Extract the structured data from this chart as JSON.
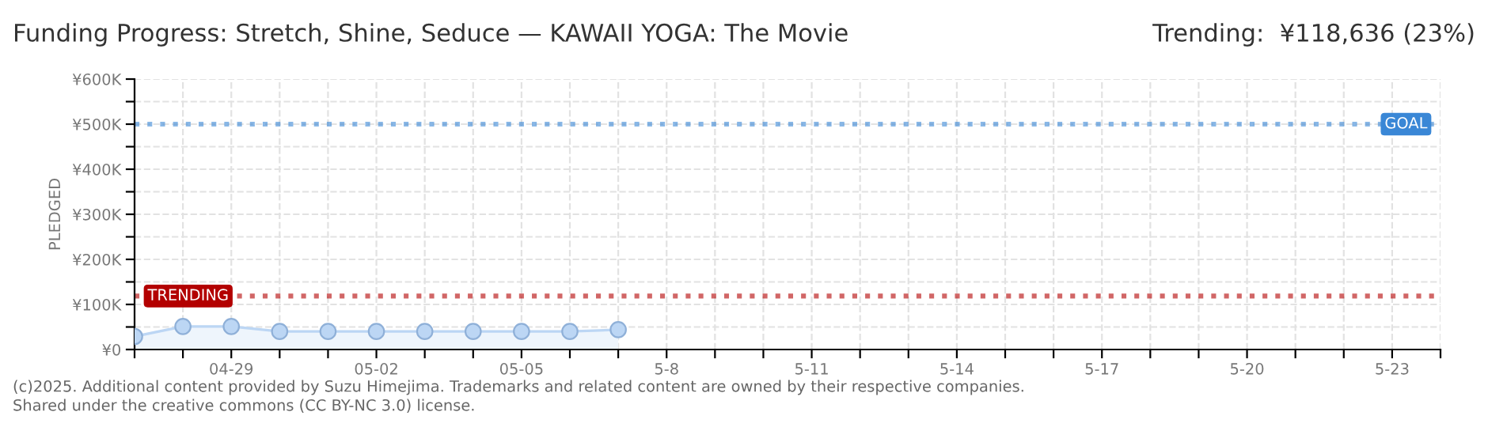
{
  "chart_data": {
    "type": "area",
    "title": "Funding Progress: Stretch, Shine, Seduce — KAWAII YOGA: The Movie",
    "subtitle": "Trending:  ¥118,636 (23%)",
    "ylabel": "PLEDGED",
    "x": [
      "2025-04-27",
      "2025-04-28",
      "2025-04-29",
      "2025-04-30",
      "2025-05-01",
      "2025-05-02",
      "2025-05-03",
      "2025-05-04",
      "2025-05-05",
      "2025-05-06",
      "2025-05-07"
    ],
    "series": [
      {
        "color": "#bcd6f4",
        "values": [
          29000,
          51000,
          51000,
          40000,
          40000,
          40000,
          40000,
          40000,
          40000,
          40000,
          44000
        ]
      }
    ],
    "marker": "circle",
    "grid": true,
    "xlim": [
      "2025-04-27",
      "2025-05-24"
    ],
    "xticks": [
      {
        "value": "2025-04-27",
        "label": null
      },
      {
        "value": "2025-04-28",
        "label": null
      },
      {
        "value": "2025-04-29",
        "label": "04-29"
      },
      {
        "value": "2025-04-30",
        "label": null
      },
      {
        "value": "2025-05-01",
        "label": null
      },
      {
        "value": "2025-05-02",
        "label": "05-02"
      },
      {
        "value": "2025-05-03",
        "label": null
      },
      {
        "value": "2025-05-04",
        "label": null
      },
      {
        "value": "2025-05-05",
        "label": "05-05"
      },
      {
        "value": "2025-05-06",
        "label": null
      },
      {
        "value": "2025-05-07",
        "label": null
      },
      {
        "value": "2025-05-08",
        "label": "5-8"
      },
      {
        "value": "2025-05-09",
        "label": null
      },
      {
        "value": "2025-05-10",
        "label": null
      },
      {
        "value": "2025-05-11",
        "label": "5-11"
      },
      {
        "value": "2025-05-12",
        "label": null
      },
      {
        "value": "2025-05-13",
        "label": null
      },
      {
        "value": "2025-05-14",
        "label": "5-14"
      },
      {
        "value": "2025-05-15",
        "label": null
      },
      {
        "value": "2025-05-16",
        "label": null
      },
      {
        "value": "2025-05-17",
        "label": "5-17"
      },
      {
        "value": "2025-05-18",
        "label": null
      },
      {
        "value": "2025-05-19",
        "label": null
      },
      {
        "value": "2025-05-20",
        "label": "5-20"
      },
      {
        "value": "2025-05-21",
        "label": null
      },
      {
        "value": "2025-05-22",
        "label": null
      },
      {
        "value": "2025-05-23",
        "label": "5-23"
      },
      {
        "value": "2025-05-24",
        "label": null
      }
    ],
    "ylim": [
      0,
      600000
    ],
    "yticks": [
      {
        "value": 0,
        "label": "¥0"
      },
      {
        "value": 50000,
        "label": null
      },
      {
        "value": 100000,
        "label": "¥100K"
      },
      {
        "value": 150000,
        "label": null
      },
      {
        "value": 200000,
        "label": "¥200K"
      },
      {
        "value": 250000,
        "label": null
      },
      {
        "value": 300000,
        "label": "¥300K"
      },
      {
        "value": 350000,
        "label": null
      },
      {
        "value": 400000,
        "label": "¥400K"
      },
      {
        "value": 450000,
        "label": null
      },
      {
        "value": 500000,
        "label": "¥500K"
      },
      {
        "value": 550000,
        "label": null
      },
      {
        "value": 600000,
        "label": "¥600K"
      }
    ],
    "ref_lines": [
      {
        "axis": "y",
        "value": 500000,
        "label": "GOAL",
        "color": "#3a87d6",
        "line_style": "dotted"
      },
      {
        "axis": "y",
        "value": 118636,
        "label": "TRENDING",
        "color": "#b30000",
        "line_style": "dotted"
      }
    ],
    "annotations": [
      "(c)2025. Additional content provided by Suzu Himejima. Trademarks and related content are owned by their respective companies.",
      "Shared under the creative commons (CC BY-NC 3.0) license."
    ]
  }
}
